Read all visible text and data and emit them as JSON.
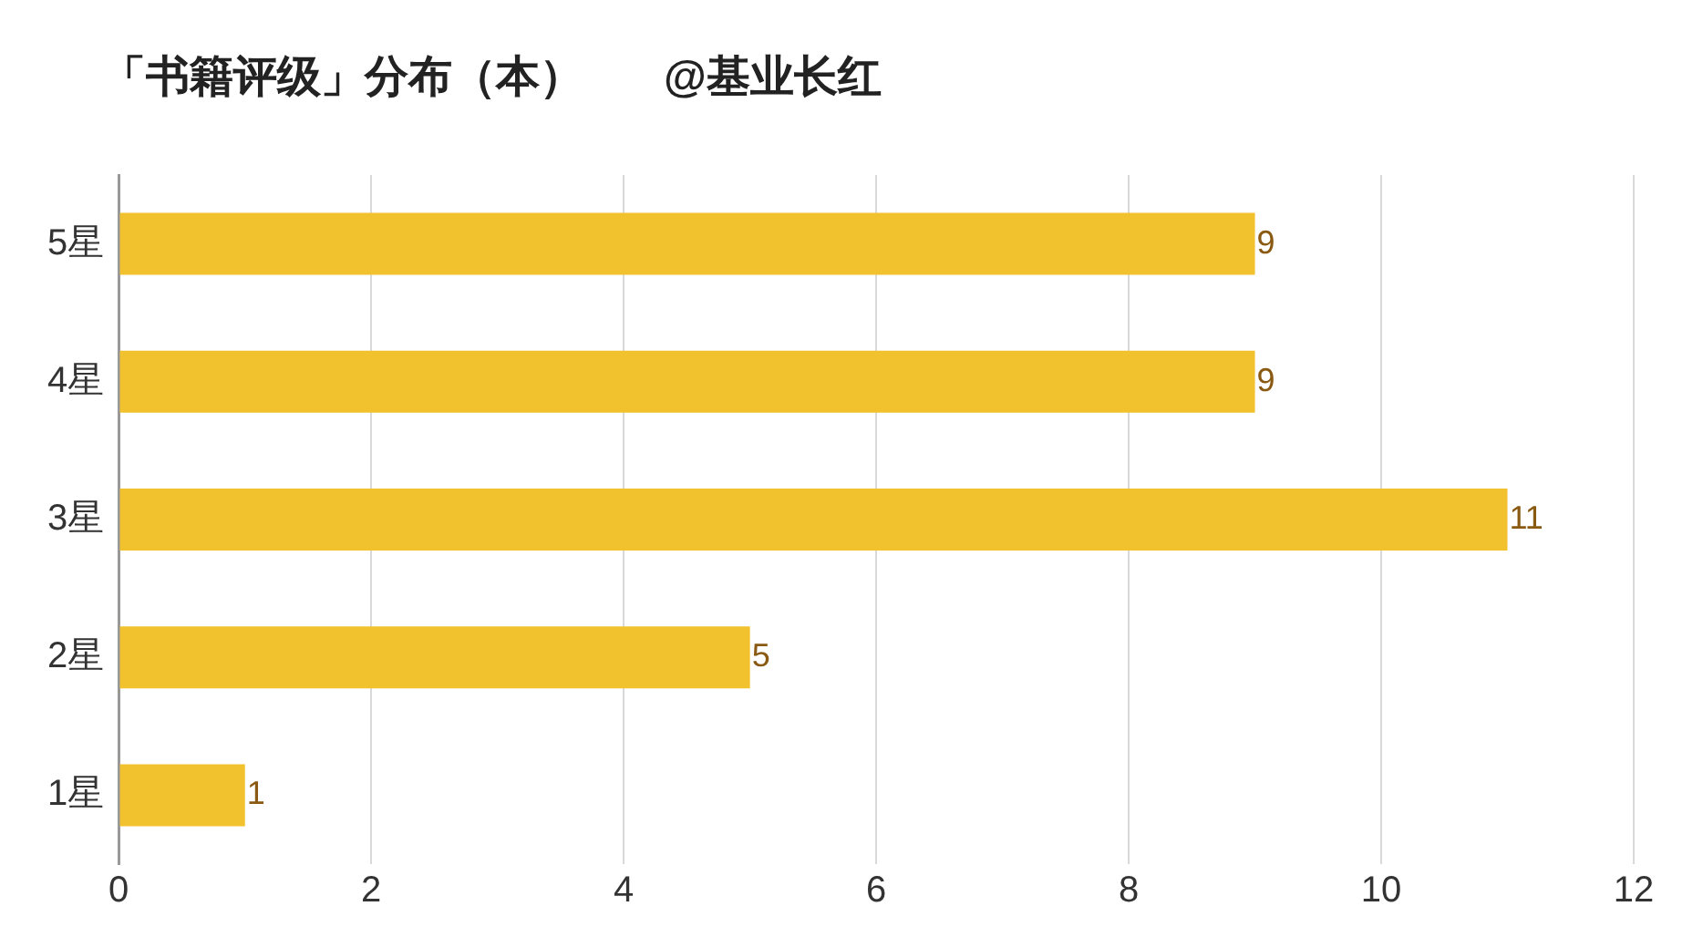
{
  "chart_data": {
    "type": "bar",
    "orientation": "horizontal",
    "title": "「书籍评级」分布（本）",
    "subtitle": "@基业长红",
    "categories": [
      "5星",
      "4星",
      "3星",
      "2星",
      "1星"
    ],
    "values": [
      9,
      9,
      11,
      5,
      1
    ],
    "color": "#f2c12e",
    "xlim": [
      0,
      12
    ],
    "xticks": [
      0,
      2,
      4,
      6,
      8,
      10,
      12
    ],
    "grid": "x",
    "data_labels": true,
    "legend": false
  }
}
